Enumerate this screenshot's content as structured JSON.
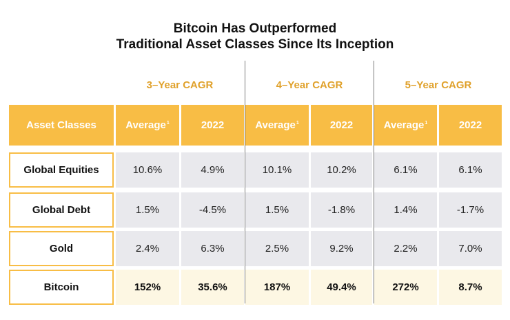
{
  "title": {
    "line1": "Bitcoin Has Outperformed",
    "line2": "Traditional Asset Classes Since Its Inception"
  },
  "groups": [
    "3–Year CAGR",
    "4–Year CAGR",
    "5–Year CAGR"
  ],
  "header": {
    "asset_classes": "Asset Classes",
    "average": "Average",
    "average_note": "1",
    "year": "2022"
  },
  "rows": [
    {
      "label": "Global Equities",
      "values": [
        "10.6%",
        "4.9%",
        "10.1%",
        "10.2%",
        "6.1%",
        "6.1%"
      ]
    },
    {
      "label": "Global Debt",
      "values": [
        "1.5%",
        "-4.5%",
        "1.5%",
        "-1.8%",
        "1.4%",
        "-1.7%"
      ]
    },
    {
      "label": "Gold",
      "values": [
        "2.4%",
        "6.3%",
        "2.5%",
        "9.2%",
        "2.2%",
        "7.0%"
      ]
    },
    {
      "label": "Bitcoin",
      "values": [
        "152%",
        "35.6%",
        "187%",
        "49.4%",
        "272%",
        "8.7%"
      ]
    }
  ],
  "colors": {
    "accent": "#f8bd45",
    "group_label": "#e0a12b",
    "value_bg": "#e9e9ed",
    "highlight_bg": "#fdf7e3"
  }
}
